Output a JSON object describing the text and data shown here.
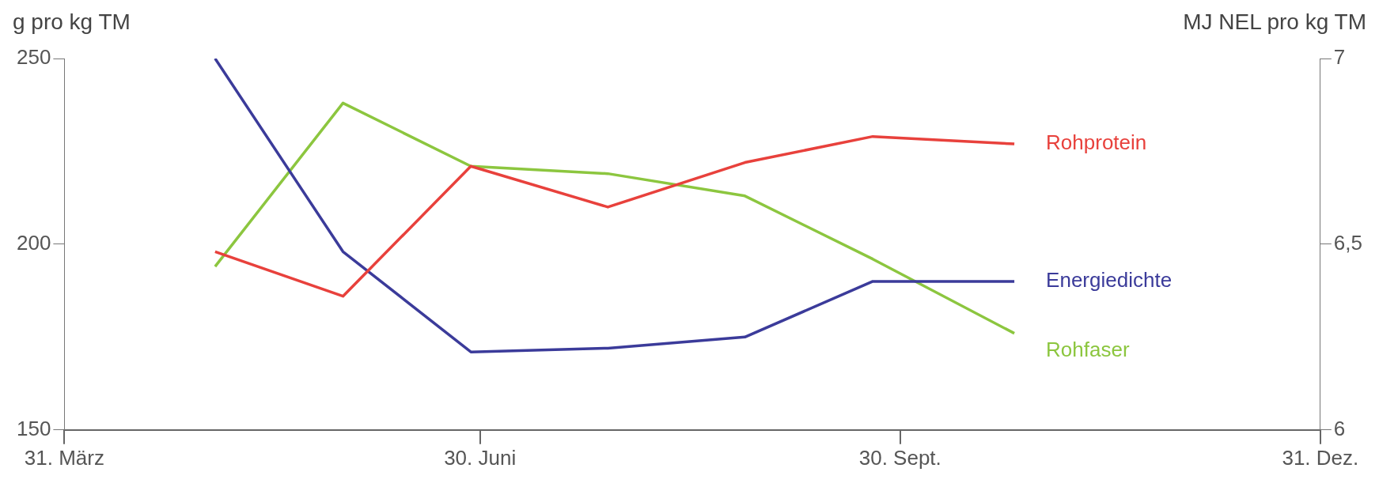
{
  "chart_data": {
    "type": "line",
    "xlabel": null,
    "ylabel": "g pro kg TM",
    "y2label": "MJ NEL pro kg TM",
    "x": [
      "--05-03",
      "--05-31",
      "--06-28",
      "--07-28",
      "--08-27",
      "--09-24",
      "--10-25"
    ],
    "series": [
      {
        "name": "Rohprotein",
        "color": "#e8413c",
        "values": [
          198,
          186,
          221,
          210,
          222,
          229,
          227
        ]
      },
      {
        "name": "Energiedichte",
        "color": "#3b3b9a",
        "axis": "y2",
        "values": [
          7.0,
          6.48,
          6.21,
          6.22,
          6.25,
          6.4,
          6.4
        ]
      },
      {
        "name": "Rohfaser",
        "color": "#8cc63f",
        "values": [
          194,
          238,
          221,
          219,
          213,
          196,
          176
        ]
      }
    ],
    "xlim": [
      "--03-31",
      "--12-31"
    ],
    "xticks": [
      {
        "value": "--03-31",
        "label": "31. März"
      },
      {
        "value": "--06-30",
        "label": "30. Juni"
      },
      {
        "value": "--09-30",
        "label": "30. Sept."
      },
      {
        "value": "--12-31",
        "label": "31. Dez."
      }
    ],
    "ylim": [
      150,
      250
    ],
    "yticks": [
      150,
      200,
      250
    ],
    "y2lim": [
      6,
      7
    ],
    "y2ticks": [
      6,
      {
        "value": 6.5,
        "label": "6,5"
      },
      7
    ],
    "grid": false,
    "legend": false,
    "marker": "none",
    "line_style": "solid"
  }
}
